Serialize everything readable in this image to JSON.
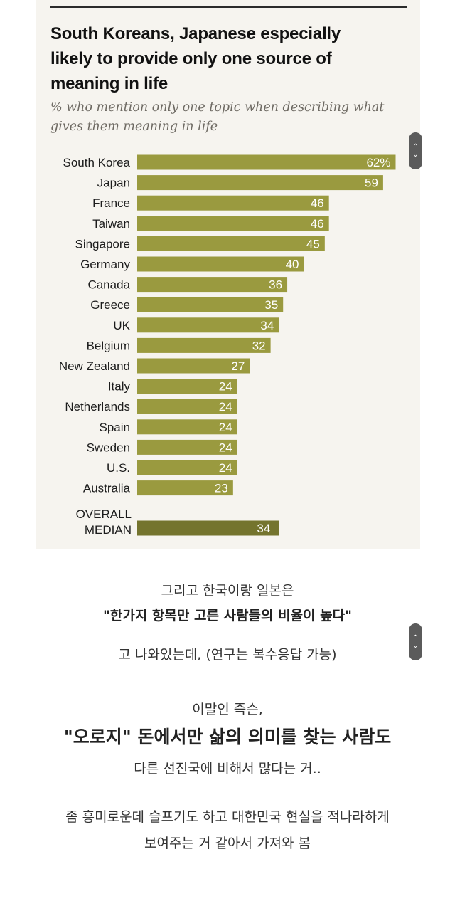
{
  "chart_data": {
    "type": "bar",
    "orientation": "horizontal",
    "title": "South Koreans, Japanese especially likely to provide only one source of meaning in life",
    "subtitle": "% who mention only one topic when describing what gives them meaning in life",
    "categories": [
      "South Korea",
      "Japan",
      "France",
      "Taiwan",
      "Singapore",
      "Germany",
      "Canada",
      "Greece",
      "UK",
      "Belgium",
      "New Zealand",
      "Italy",
      "Netherlands",
      "Spain",
      "Sweden",
      "U.S.",
      "Australia"
    ],
    "values": [
      62,
      59,
      46,
      46,
      45,
      40,
      36,
      35,
      34,
      32,
      27,
      24,
      24,
      24,
      24,
      24,
      23
    ],
    "value_labels": [
      "62%",
      "59",
      "46",
      "46",
      "45",
      "40",
      "36",
      "35",
      "34",
      "32",
      "27",
      "24",
      "24",
      "24",
      "24",
      "24",
      "23"
    ],
    "median": {
      "label_line1": "OVERALL",
      "label_line2": "MEDIAN",
      "value": 34,
      "value_label": "34"
    },
    "bar_color": "#9a9a3f",
    "median_color": "#74742e"
  },
  "scroll_buttons": {
    "up": "⌃",
    "down": "⌄"
  },
  "captions": {
    "line1": "그리고 한국이랑 일본은",
    "line2": "\"한가지 항목만 고른 사람들의 비율이 높다\"",
    "line3": "고 나와있는데, (연구는 복수응답 가능)",
    "line4": "이말인 즉슨,",
    "line5": "\"오로지\" 돈에서만 삶의 의미를 찾는 사람도",
    "line6": "다른 선진국에 비해서 많다는 거..",
    "line7": "좀 흥미로운데 슬프기도 하고 대한민국 현실을 적나라하게",
    "line8": "보여주는 거 같아서 가져와 봄"
  }
}
